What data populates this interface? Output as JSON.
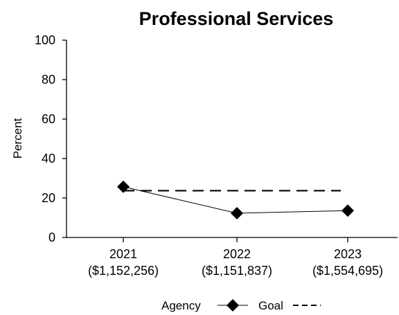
{
  "chart_data": {
    "type": "line",
    "title": "Professional Services",
    "ylabel": "Percent",
    "xlabel": "",
    "ylim": [
      0,
      100
    ],
    "yticks": [
      0,
      20,
      40,
      60,
      80,
      100
    ],
    "categories": [
      {
        "year": "2021",
        "amount": "($1,152,256)"
      },
      {
        "year": "2022",
        "amount": "($1,151,837)"
      },
      {
        "year": "2023",
        "amount": "($1,554,695)"
      }
    ],
    "series": [
      {
        "name": "Agency",
        "values": [
          25.7,
          12.3,
          13.6
        ],
        "style": "solid",
        "marker": "diamond",
        "color": "#000000"
      },
      {
        "name": "Goal",
        "values": [
          23.7,
          23.7,
          23.7
        ],
        "style": "dashed",
        "marker": "none",
        "color": "#000000"
      }
    ],
    "legend_position": "bottom",
    "grid": false
  }
}
